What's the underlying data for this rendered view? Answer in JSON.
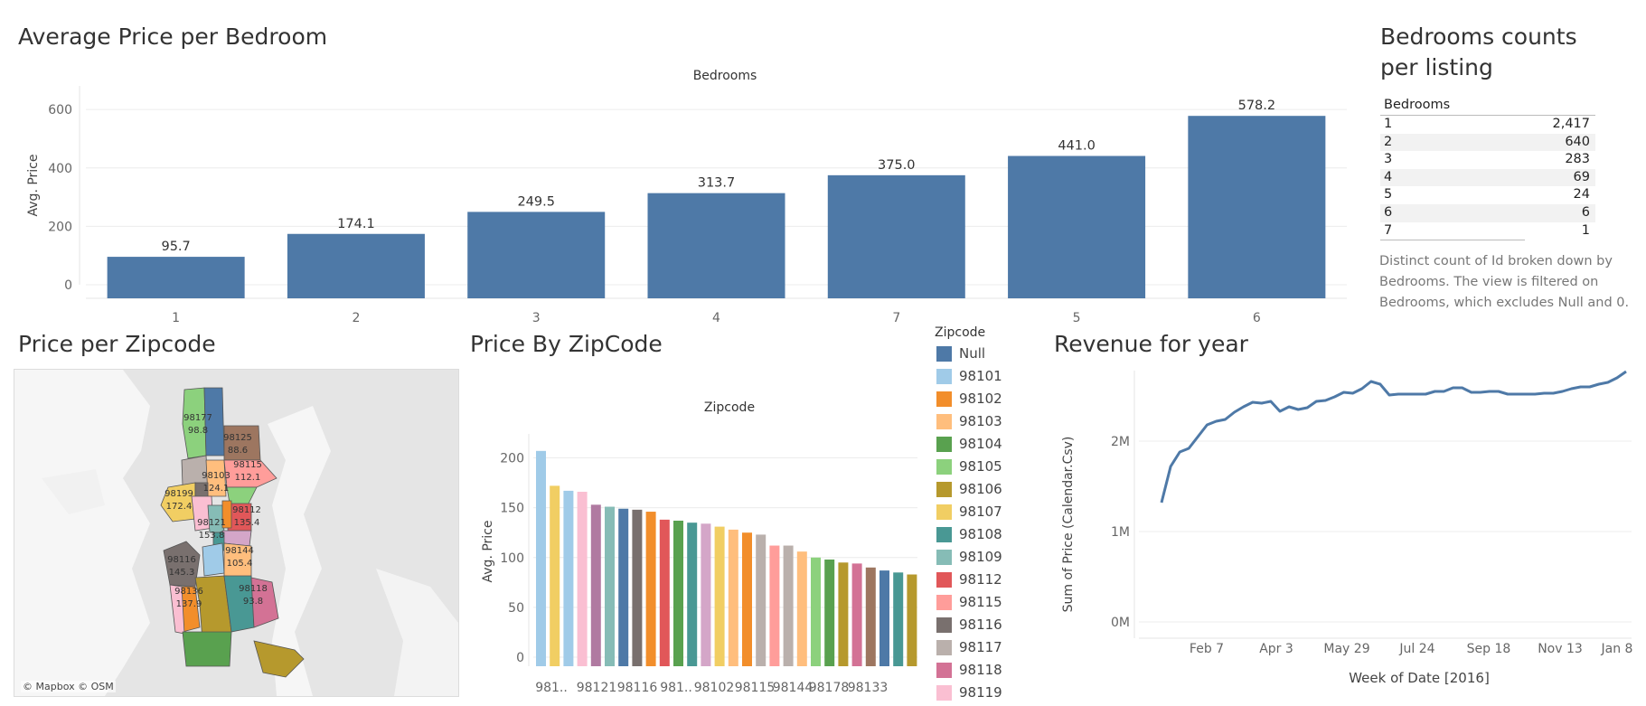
{
  "panels": {
    "bedroom_chart_title": "Average Price per Bedroom",
    "counts_title_line1": "Bedrooms counts",
    "counts_title_line2": "per listing",
    "zip_map_title": "Price per Zipcode",
    "zip_bar_title": "Price By ZipCode",
    "revenue_title": "Revenue for year"
  },
  "counts_table": {
    "header": "Bedrooms",
    "rows": [
      {
        "bedrooms": "1",
        "count": "2,417"
      },
      {
        "bedrooms": "2",
        "count": "640"
      },
      {
        "bedrooms": "3",
        "count": "283"
      },
      {
        "bedrooms": "4",
        "count": "69"
      },
      {
        "bedrooms": "5",
        "count": "24"
      },
      {
        "bedrooms": "6",
        "count": "6"
      },
      {
        "bedrooms": "7",
        "count": "1"
      }
    ],
    "caption_l1": "Distinct count of Id broken down by",
    "caption_l2": "Bedrooms. The view is filtered on",
    "caption_l3": "Bedrooms, which excludes Null and 0."
  },
  "map": {
    "attribution": "© Mapbox © OSM",
    "regions": [
      {
        "zip": "98177",
        "value": "98.8"
      },
      {
        "zip": "98125",
        "value": "88.6"
      },
      {
        "zip": "98103",
        "value": "124.1"
      },
      {
        "zip": "98115",
        "value": "112.1"
      },
      {
        "zip": "98199",
        "value": "172.4"
      },
      {
        "zip": "98112",
        "value": "135.4"
      },
      {
        "zip": "98121",
        "value": "153.8"
      },
      {
        "zip": "98144",
        "value": "105.4"
      },
      {
        "zip": "98116",
        "value": "145.3"
      },
      {
        "zip": "98118",
        "value": "93.8"
      },
      {
        "zip": "98136",
        "value": "137.9"
      }
    ]
  },
  "legend": {
    "title": "Zipcode",
    "items": [
      {
        "label": "Null",
        "color": "#4e79a7"
      },
      {
        "label": "98101",
        "color": "#a0cbe8"
      },
      {
        "label": "98102",
        "color": "#f28e2b"
      },
      {
        "label": "98103",
        "color": "#ffbe7d"
      },
      {
        "label": "98104",
        "color": "#59a14f"
      },
      {
        "label": "98105",
        "color": "#8cd17d"
      },
      {
        "label": "98106",
        "color": "#b6992d"
      },
      {
        "label": "98107",
        "color": "#f1ce63"
      },
      {
        "label": "98108",
        "color": "#499894"
      },
      {
        "label": "98109",
        "color": "#86bcb6"
      },
      {
        "label": "98112",
        "color": "#e15759"
      },
      {
        "label": "98115",
        "color": "#ff9d9a"
      },
      {
        "label": "98116",
        "color": "#79706e"
      },
      {
        "label": "98117",
        "color": "#bab0ac"
      },
      {
        "label": "98118",
        "color": "#d37295"
      },
      {
        "label": "98119",
        "color": "#fabfd2"
      }
    ]
  },
  "chart_data": [
    {
      "type": "bar",
      "title": "Bedrooms",
      "xlabel": "",
      "ylabel": "Avg. Price",
      "categories": [
        "1",
        "2",
        "3",
        "4",
        "7",
        "5",
        "6"
      ],
      "values": [
        95.7,
        174.1,
        249.5,
        313.7,
        375.0,
        441.0,
        578.2
      ],
      "value_labels": [
        "95.7",
        "174.1",
        "249.5",
        "313.7",
        "375.0",
        "441.0",
        "578.2"
      ],
      "y_ticks": [
        "0",
        "200",
        "400",
        "600"
      ],
      "ylim": [
        0,
        600
      ],
      "color": "#4e79a7",
      "grid": true
    },
    {
      "type": "bar",
      "title": "Zipcode",
      "ylabel": "Avg. Price",
      "y_ticks": [
        "0",
        "50",
        "100",
        "150",
        "200"
      ],
      "ylim": [
        0,
        200
      ],
      "visible_x_labels": [
        "981..",
        "98121",
        "98116",
        "981..",
        "98102",
        "98115",
        "98144",
        "98178",
        "98133"
      ],
      "values": [
        207,
        172,
        167,
        166,
        153,
        151,
        149,
        148,
        146,
        138,
        137,
        135,
        134,
        131,
        128,
        125,
        123,
        112,
        112,
        106,
        100,
        98,
        95,
        94,
        90,
        87,
        85,
        83
      ],
      "colors": [
        "#a0cbe8",
        "#f1ce63",
        "#a0cbe8",
        "#fabfd2",
        "#b07aa1",
        "#86bcb6",
        "#4e79a7",
        "#79706e",
        "#f28e2b",
        "#e15759",
        "#59a14f",
        "#499894",
        "#d4a6c8",
        "#f1ce63",
        "#ffbe7d",
        "#f28e2b",
        "#bab0ac",
        "#ff9d9a",
        "#bab0ac",
        "#ffbe7d",
        "#8cd17d",
        "#59a14f",
        "#b6992d",
        "#d37295",
        "#9d7660",
        "#4e79a7",
        "#499894",
        "#b6992d"
      ],
      "grid": true
    },
    {
      "type": "line",
      "title": "",
      "xlabel": "Week of Date [2016]",
      "ylabel": "Sum of Price (Calendar.Csv)",
      "x_ticks": [
        "Feb 7",
        "Apr 3",
        "May 29",
        "Jul 24",
        "Sep 18",
        "Nov 13",
        "Jan 8"
      ],
      "y_ticks": [
        "0M",
        "1M",
        "2M"
      ],
      "ylim_millions": [
        0,
        2.75
      ],
      "color": "#4e79a7",
      "values_millions": [
        1.32,
        1.72,
        1.88,
        1.92,
        2.05,
        2.18,
        2.22,
        2.24,
        2.32,
        2.38,
        2.43,
        2.42,
        2.44,
        2.33,
        2.38,
        2.35,
        2.37,
        2.44,
        2.45,
        2.49,
        2.54,
        2.53,
        2.58,
        2.66,
        2.63,
        2.51,
        2.52,
        2.52,
        2.52,
        2.52,
        2.55,
        2.55,
        2.59,
        2.59,
        2.54,
        2.54,
        2.55,
        2.55,
        2.52,
        2.52,
        2.52,
        2.52,
        2.53,
        2.53,
        2.55,
        2.58,
        2.6,
        2.6,
        2.63,
        2.65,
        2.7,
        2.77
      ]
    }
  ]
}
